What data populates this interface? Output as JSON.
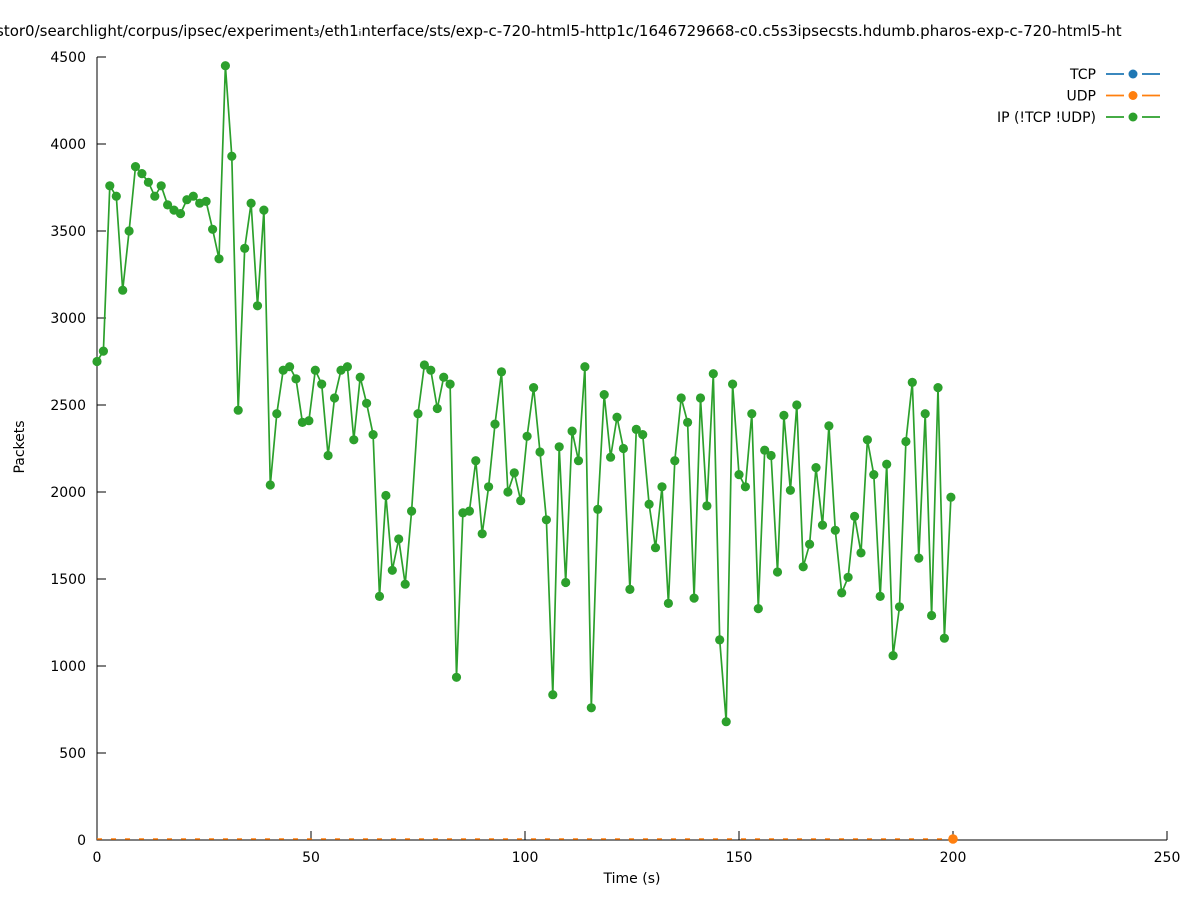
{
  "chart_data": {
    "type": "line",
    "title": "stor0/searchlight/corpus/ipsec/experiment₃/eth1ᵢnterface/sts/exp-c-720-html5-http1c/1646729668-c0.c5s3ipsecsts.hdumb.pharos-exp-c-720-html5-ht",
    "xlabel": "Time (s)",
    "ylabel": "Packets",
    "xlim": [
      0,
      250
    ],
    "ylim": [
      0,
      4500
    ],
    "x_ticks": [
      0,
      50,
      100,
      150,
      200,
      250
    ],
    "y_ticks": [
      0,
      500,
      1000,
      1500,
      2000,
      2500,
      3000,
      3500,
      4000,
      4500
    ],
    "grid": false,
    "legend_position": "top-right",
    "series": [
      {
        "name": "TCP",
        "color": "#1f77b4",
        "style": "linespoints",
        "x": [],
        "values": []
      },
      {
        "name": "UDP",
        "color": "#ff7f0e",
        "style": "dashed-line-with-end-marker",
        "x": [
          0,
          200
        ],
        "values": [
          0,
          0
        ]
      },
      {
        "name": "IP (!TCP  !UDP)",
        "color": "#2ca02c",
        "style": "linespoints",
        "x_start": 0,
        "x_step": 1.5,
        "values": [
          2750,
          2810,
          3760,
          3700,
          3160,
          3500,
          3870,
          3830,
          3780,
          3700,
          3760,
          3650,
          3620,
          3600,
          3680,
          3700,
          3660,
          3670,
          3510,
          3340,
          4450,
          3930,
          2470,
          3400,
          3660,
          3070,
          3620,
          2040,
          2450,
          2700,
          2720,
          2650,
          2400,
          2410,
          2700,
          2620,
          2210,
          2540,
          2700,
          2720,
          2300,
          2660,
          2510,
          2330,
          1400,
          1980,
          1550,
          1730,
          1470,
          1890,
          2450,
          2730,
          2700,
          2480,
          2660,
          2620,
          935,
          1880,
          1890,
          2180,
          1760,
          2030,
          2390,
          2690,
          2000,
          2110,
          1950,
          2320,
          2600,
          2230,
          1840,
          835,
          2260,
          1480,
          2350,
          2180,
          2720,
          760,
          1900,
          2560,
          2200,
          2430,
          2250,
          1440,
          2360,
          2330,
          1930,
          1680,
          2030,
          1360,
          2180,
          2540,
          2400,
          1390,
          2540,
          1920,
          2680,
          1150,
          680,
          2620,
          2100,
          2030,
          2450,
          1330,
          2240,
          2210,
          1540,
          2440,
          2010,
          2500,
          1570,
          1700,
          2140,
          1810,
          2380,
          1780,
          1420,
          1510,
          1860,
          1650,
          2300,
          2100,
          1400,
          2160,
          1060,
          1340,
          2290,
          2630,
          1620,
          2450,
          1290,
          2600,
          1160,
          1970
        ]
      }
    ]
  }
}
